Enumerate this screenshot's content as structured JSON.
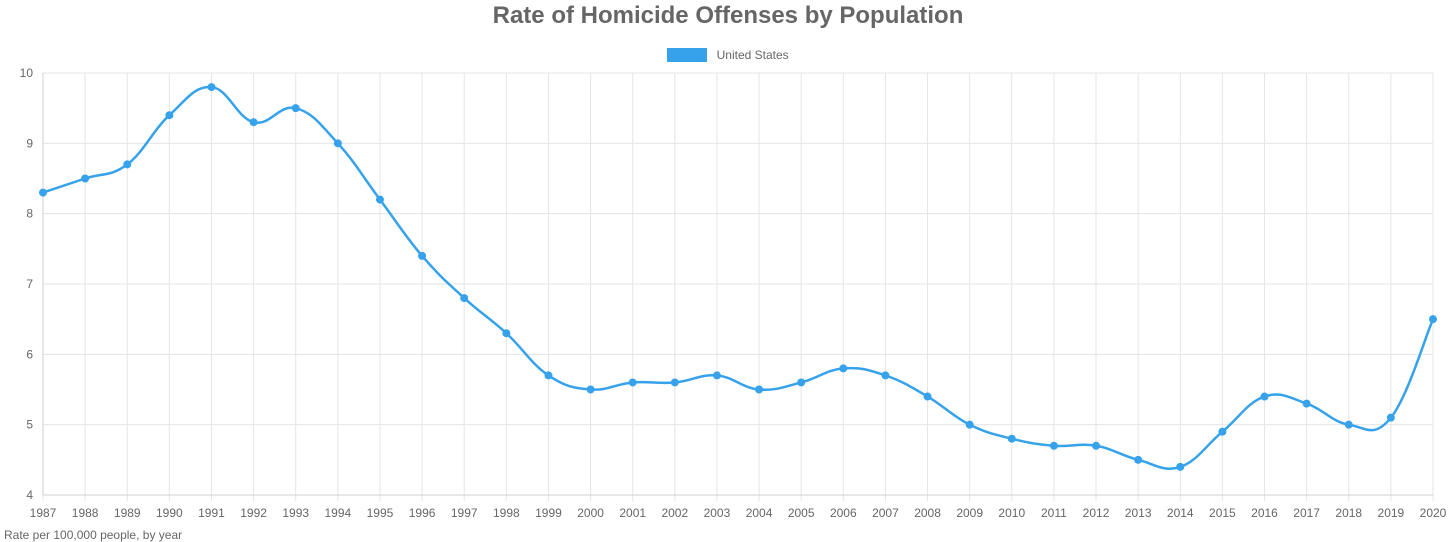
{
  "chart_data": {
    "type": "line",
    "title": "Rate of Homicide Offenses by Population",
    "subtitle": "Rate per 100,000 people, by year",
    "xlabel": "",
    "ylabel": "",
    "ylim": [
      4,
      10
    ],
    "yticks": [
      "4",
      "5",
      "6",
      "7",
      "8",
      "9",
      "10"
    ],
    "grid": true,
    "legend_position": "top",
    "categories": [
      "1987",
      "1988",
      "1989",
      "1990",
      "1991",
      "1992",
      "1993",
      "1994",
      "1995",
      "1996",
      "1997",
      "1998",
      "1999",
      "2000",
      "2001",
      "2002",
      "2003",
      "2004",
      "2005",
      "2006",
      "2007",
      "2008",
      "2009",
      "2010",
      "2011",
      "2012",
      "2013",
      "2014",
      "2015",
      "2016",
      "2017",
      "2018",
      "2019",
      "2020"
    ],
    "series": [
      {
        "name": "United States",
        "color": "#36A2EB",
        "values": [
          8.3,
          8.5,
          8.7,
          9.4,
          9.8,
          9.3,
          9.5,
          9.0,
          8.2,
          7.4,
          6.8,
          6.3,
          5.7,
          5.5,
          5.6,
          5.6,
          5.7,
          5.5,
          5.6,
          5.8,
          5.7,
          5.4,
          5.0,
          4.8,
          4.7,
          4.7,
          4.5,
          4.4,
          4.9,
          5.4,
          5.3,
          5.0,
          5.1,
          6.5
        ]
      }
    ]
  }
}
